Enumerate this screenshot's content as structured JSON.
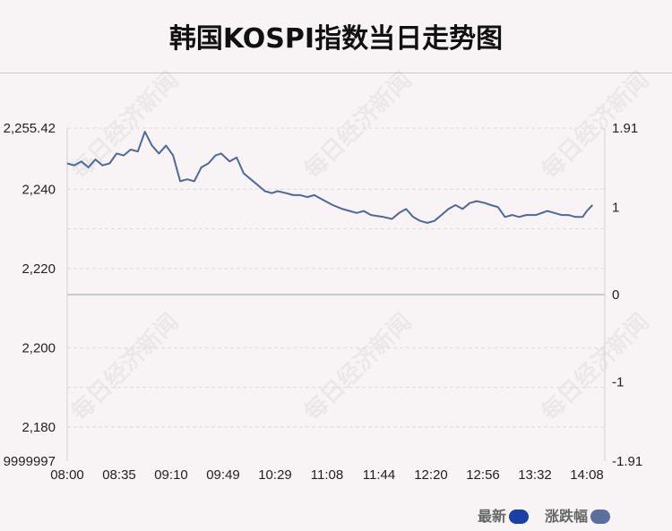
{
  "title": "韩国KOSPI指数当日走势图",
  "watermark": "每日经济新闻",
  "legend": [
    {
      "label": "最新",
      "color": "#1b3fa8"
    },
    {
      "label": "涨跌幅",
      "color": "#5b6f9c"
    }
  ],
  "chart_data": {
    "type": "line",
    "title": "韩国KOSPI指数当日走势图",
    "x_tick_labels": [
      "08:00",
      "08:35",
      "09:10",
      "09:49",
      "10:29",
      "11:08",
      "11:44",
      "12:20",
      "12:56",
      "13:32",
      "14:08"
    ],
    "y_left_tick_labels": [
      "2,255.42",
      "2,240",
      "2,220",
      "2,200",
      "2,180",
      "9999997"
    ],
    "y_right_tick_labels": [
      "1.91",
      "1",
      "0",
      "-1",
      "-1.91"
    ],
    "ylim_left": [
      2171.4,
      2255.42
    ],
    "ylim_right": [
      -1.91,
      1.91
    ],
    "baseline": 2213.4,
    "grid": true,
    "series": [
      {
        "name": "最新",
        "color": "#4f6898",
        "x": [
          "08:00",
          "08:05",
          "08:10",
          "08:15",
          "08:20",
          "08:25",
          "08:30",
          "08:35",
          "08:40",
          "08:45",
          "08:50",
          "08:55",
          "09:00",
          "09:05",
          "09:10",
          "09:15",
          "09:20",
          "09:25",
          "09:30",
          "09:35",
          "09:40",
          "09:45",
          "09:49",
          "09:55",
          "10:00",
          "10:05",
          "10:10",
          "10:15",
          "10:20",
          "10:25",
          "10:29",
          "10:35",
          "10:40",
          "10:45",
          "10:50",
          "10:55",
          "11:00",
          "11:08",
          "11:15",
          "11:20",
          "11:25",
          "11:30",
          "11:35",
          "11:44",
          "11:50",
          "11:55",
          "12:00",
          "12:05",
          "12:10",
          "12:15",
          "12:20",
          "12:25",
          "12:30",
          "12:35",
          "12:40",
          "12:45",
          "12:50",
          "12:56",
          "13:00",
          "13:05",
          "13:10",
          "13:15",
          "13:20",
          "13:25",
          "13:32",
          "13:40",
          "13:45",
          "13:50",
          "13:55",
          "14:00",
          "14:05",
          "14:08",
          "14:12"
        ],
        "values": [
          2246.5,
          2246.0,
          2247.0,
          2245.5,
          2247.5,
          2246.0,
          2246.5,
          2249.0,
          2248.5,
          2250.0,
          2249.5,
          2254.5,
          2251.0,
          2249.0,
          2251.0,
          2248.5,
          2242.0,
          2242.5,
          2242.0,
          2245.5,
          2246.5,
          2248.5,
          2249.0,
          2247.0,
          2248.0,
          2244.0,
          2242.5,
          2241.0,
          2239.5,
          2239.0,
          2239.5,
          2239.0,
          2238.5,
          2238.5,
          2238.0,
          2238.5,
          2237.5,
          2236.0,
          2235.0,
          2234.5,
          2234.0,
          2234.5,
          2233.5,
          2233.0,
          2232.5,
          2234.0,
          2235.0,
          2233.0,
          2232.0,
          2231.5,
          2232.0,
          2233.5,
          2235.0,
          2236.0,
          2235.0,
          2236.5,
          2237.0,
          2236.5,
          2236.0,
          2235.5,
          2233.0,
          2233.5,
          2233.0,
          2233.5,
          2233.5,
          2234.5,
          2234.0,
          2233.5,
          2233.5,
          2233.0,
          2233.0,
          2234.5,
          2236.0
        ]
      }
    ]
  }
}
